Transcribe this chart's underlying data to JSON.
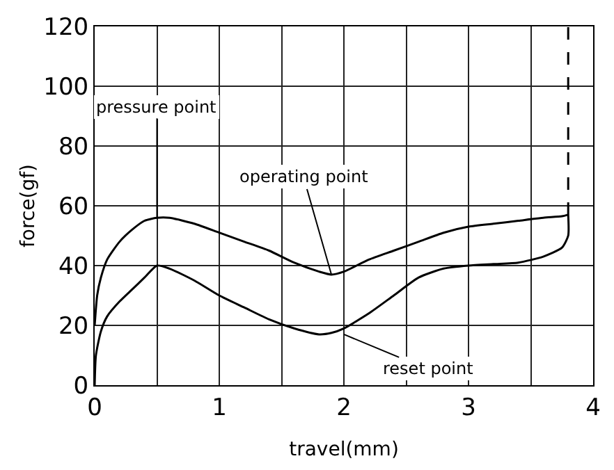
{
  "chart_data": {
    "type": "line",
    "xlabel": "travel(mm)",
    "ylabel": "force(gf)",
    "xlim": [
      0,
      4
    ],
    "ylim": [
      0,
      120
    ],
    "xticks": [
      0,
      {
        "value": 0.5,
        "label": null
      },
      1,
      {
        "value": 1.5,
        "label": null
      },
      2,
      {
        "value": 2.5,
        "label": null
      },
      3,
      {
        "value": 3.5,
        "label": null
      },
      4
    ],
    "yticks": [
      0,
      20,
      40,
      60,
      80,
      100,
      120
    ],
    "grid": true,
    "marker": "none",
    "series": [
      {
        "color": "#000000",
        "x": [
          0,
          0.02,
          0.05,
          0.1,
          0.2,
          0.3,
          0.4,
          0.5,
          0.6,
          0.8,
          1.0,
          1.2,
          1.4,
          1.6,
          1.8,
          1.9,
          2.0,
          2.2,
          2.4,
          2.6,
          2.8,
          3.0,
          3.2,
          3.4,
          3.6,
          3.75,
          3.8
        ],
        "values": [
          20,
          30,
          36,
          42,
          48,
          52,
          55,
          56,
          56,
          54,
          51,
          48,
          45,
          41,
          38,
          37,
          38,
          42,
          45,
          48,
          51,
          53,
          54,
          55,
          56,
          56.5,
          57
        ]
      },
      {
        "color": "#000000",
        "x": [
          0,
          0.01,
          0.05,
          0.1,
          0.2,
          0.3,
          0.4,
          0.5,
          0.6,
          0.8,
          1.0,
          1.2,
          1.4,
          1.6,
          1.8,
          1.9,
          2.0,
          2.2,
          2.4,
          2.6,
          2.8,
          3.0,
          3.2,
          3.4,
          3.6,
          3.75,
          3.8,
          3.8
        ],
        "values": [
          0,
          10,
          18,
          23,
          28,
          32,
          36,
          40,
          39,
          35,
          30,
          26,
          22,
          19,
          17,
          17.5,
          19,
          24,
          30,
          36,
          39,
          40,
          40.5,
          41,
          43,
          46,
          50,
          57
        ]
      },
      {
        "color": "#000000",
        "line_style": "dashed",
        "x": [
          3.8,
          3.8
        ],
        "values": [
          57,
          120
        ]
      }
    ],
    "annotations": [
      {
        "text": "pressure point",
        "x": 0.5,
        "y": 56
      },
      {
        "text": "operating point",
        "x": 1.9,
        "y": 37
      },
      {
        "text": "reset point",
        "x": 2.0,
        "y": 17
      }
    ]
  }
}
